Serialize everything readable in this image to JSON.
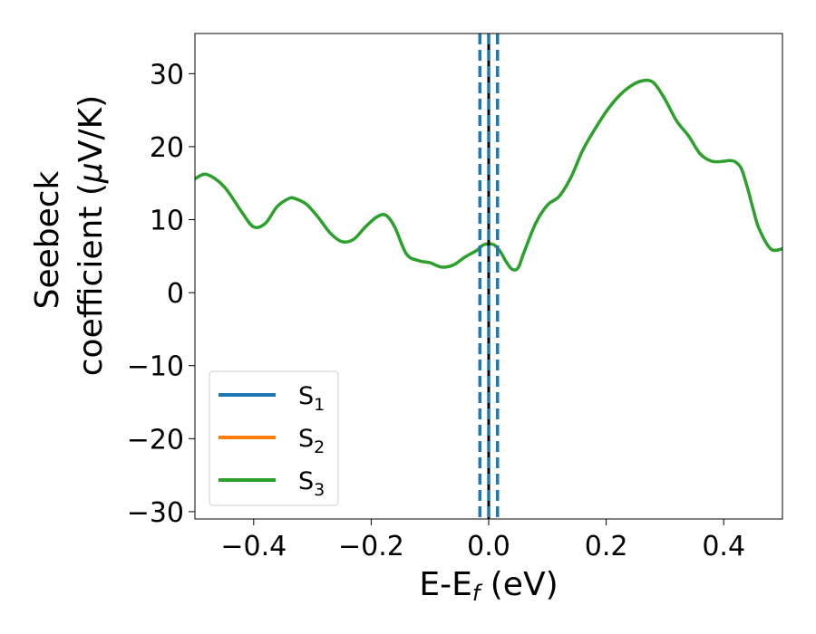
{
  "chart_data": {
    "type": "line",
    "xlabel": {
      "main": "E-E",
      "sub": "f",
      "unit": " (eV)"
    },
    "ylabel": {
      "line1": "Seebeck",
      "line2_text": "coefficient  (",
      "line2_mu": "μ",
      "line2_unit": "V/K)"
    },
    "xlim": [
      -0.5,
      0.5
    ],
    "ylim": [
      -31,
      35.5
    ],
    "xticks": [
      -0.4,
      -0.2,
      0.0,
      0.2,
      0.4
    ],
    "xtick_labels": [
      "−0.4",
      "−0.2",
      "0.0",
      "0.2",
      "0.4"
    ],
    "yticks": [
      -30,
      -20,
      -10,
      0,
      10,
      20,
      30
    ],
    "ytick_labels": [
      "−30",
      "−20",
      "−10",
      "0",
      "10",
      "20",
      "30"
    ],
    "grid": false,
    "legend_position": "lower-left",
    "series": [
      {
        "name": "S",
        "sub": "1",
        "color": "#1f77b4",
        "x": [],
        "y": []
      },
      {
        "name": "S",
        "sub": "2",
        "color": "#ff7f0e",
        "x": [],
        "y": []
      },
      {
        "name": "S",
        "sub": "3",
        "color": "#2ca02c",
        "x": [
          -0.5,
          -0.48,
          -0.45,
          -0.42,
          -0.4,
          -0.38,
          -0.36,
          -0.34,
          -0.33,
          -0.31,
          -0.29,
          -0.27,
          -0.25,
          -0.23,
          -0.21,
          -0.19,
          -0.175,
          -0.16,
          -0.14,
          -0.12,
          -0.1,
          -0.08,
          -0.06,
          -0.04,
          -0.02,
          -0.01,
          0.0,
          0.01,
          0.02,
          0.03,
          0.04,
          0.05,
          0.06,
          0.08,
          0.1,
          0.12,
          0.14,
          0.16,
          0.18,
          0.2,
          0.22,
          0.24,
          0.26,
          0.28,
          0.3,
          0.32,
          0.34,
          0.36,
          0.38,
          0.4,
          0.41,
          0.42,
          0.43,
          0.44,
          0.45,
          0.46,
          0.48,
          0.5
        ],
        "y": [
          15.6,
          16.2,
          14.5,
          11.0,
          9.0,
          9.5,
          11.8,
          12.9,
          12.9,
          12.1,
          10.3,
          8.2,
          7.0,
          7.3,
          9.0,
          10.4,
          10.6,
          9.0,
          5.3,
          4.4,
          4.1,
          3.5,
          3.8,
          4.9,
          5.8,
          6.5,
          6.7,
          6.5,
          5.6,
          4.2,
          3.2,
          3.4,
          5.5,
          9.5,
          12.0,
          13.2,
          15.8,
          19.5,
          22.3,
          24.8,
          26.8,
          28.2,
          29.0,
          28.8,
          26.5,
          23.5,
          21.5,
          19.0,
          18.0,
          18.0,
          18.1,
          17.9,
          17.0,
          14.5,
          11.5,
          8.8,
          6.0,
          6.0
        ]
      }
    ],
    "fermi_line": {
      "x": 0.0,
      "color": "#000000"
    },
    "window_lines": {
      "x": [
        -0.015,
        0.0,
        0.015
      ],
      "color": "#1f77b4"
    }
  }
}
